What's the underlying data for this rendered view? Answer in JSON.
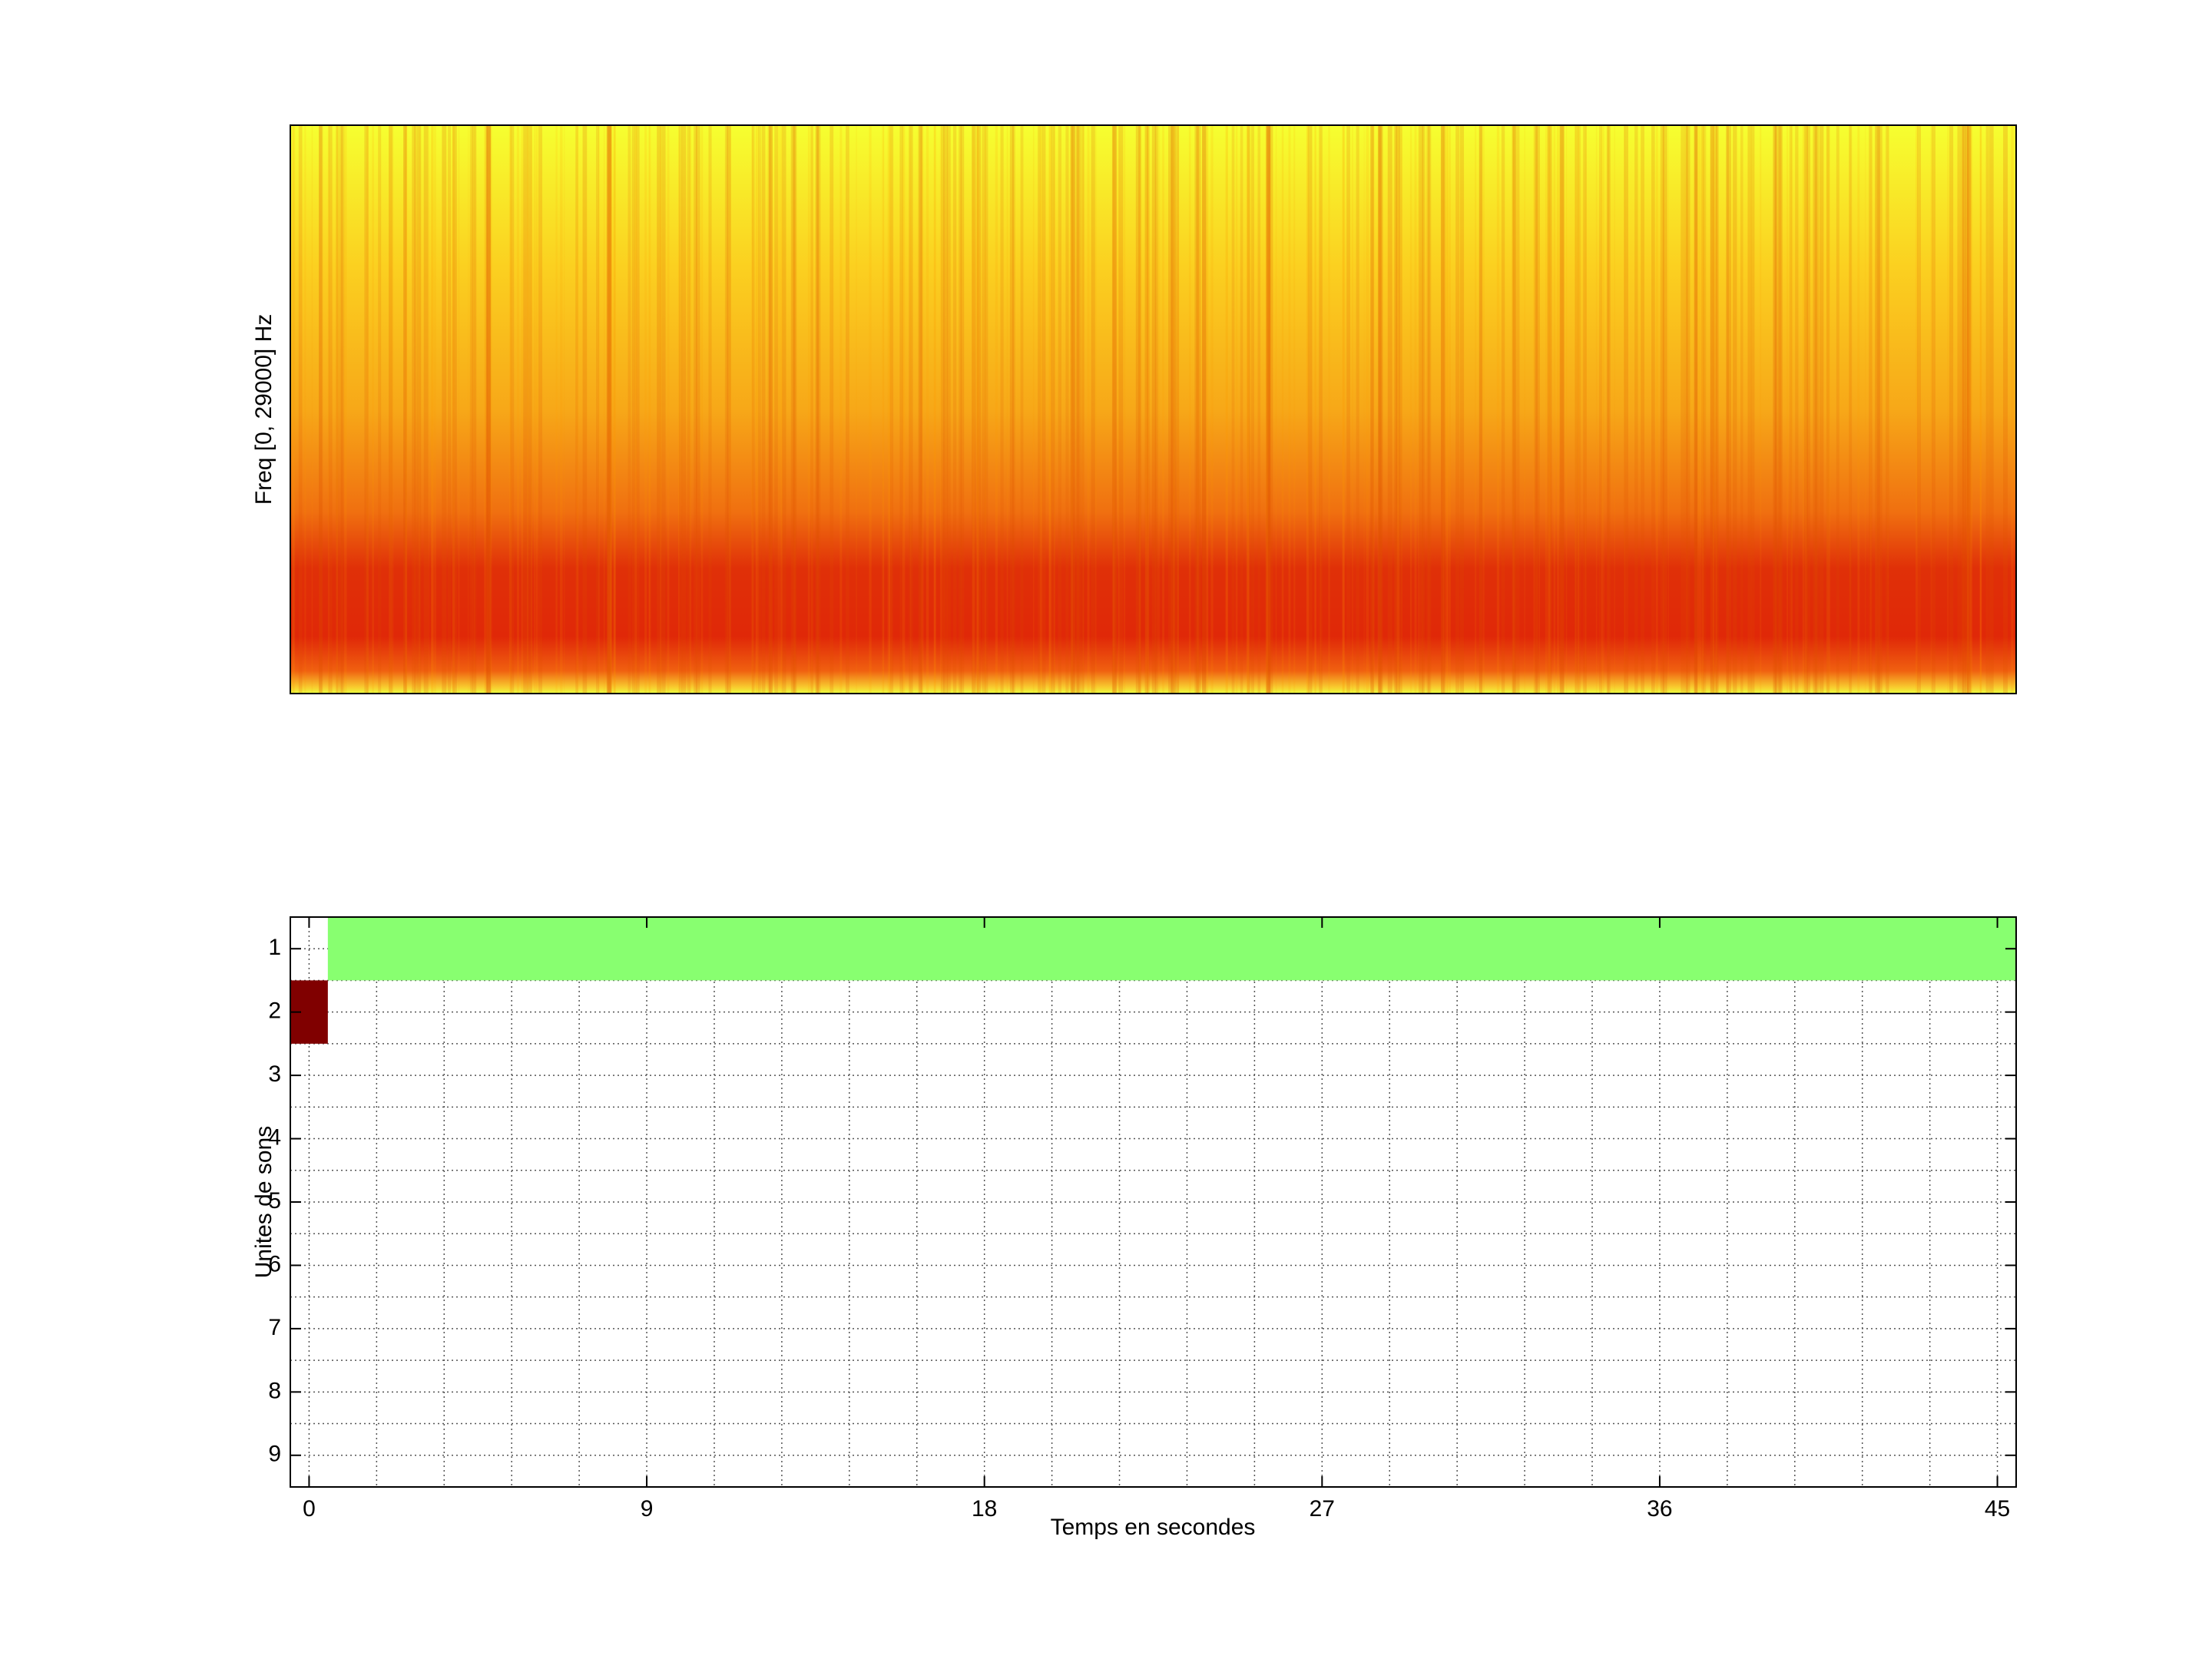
{
  "chart_data": [
    {
      "type": "spectrogram",
      "ylabel": "Freq [0, 29000] Hz"
    },
    {
      "type": "raster",
      "ylabel": "Unites de sons",
      "xlabel": "Temps en secondes",
      "xlim": [
        -0.5,
        45.5
      ],
      "xticks": [
        0,
        9,
        18,
        27,
        36,
        45
      ],
      "xminorticks": [
        1.8,
        3.6,
        5.4,
        7.2,
        10.8,
        12.6,
        14.4,
        16.2,
        19.8,
        21.6,
        23.4,
        25.2,
        28.8,
        30.6,
        32.4,
        34.2,
        37.8,
        39.6,
        41.4,
        43.2
      ],
      "ylim": [
        0.5,
        9.5
      ],
      "y_reversed": true,
      "yticks": [
        1,
        2,
        3,
        4,
        5,
        6,
        7,
        8,
        9
      ],
      "yminorticks": [
        1.5,
        2.5,
        3.5,
        4.5,
        5.5,
        6.5,
        7.5,
        8.5
      ],
      "grid": true,
      "segments": [
        {
          "y": 1,
          "x": [
            0.5,
            45.5
          ],
          "color": "#88ff70"
        },
        {
          "y": 2,
          "x": [
            -0.5,
            0.5
          ],
          "color": "#800000"
        }
      ]
    }
  ]
}
